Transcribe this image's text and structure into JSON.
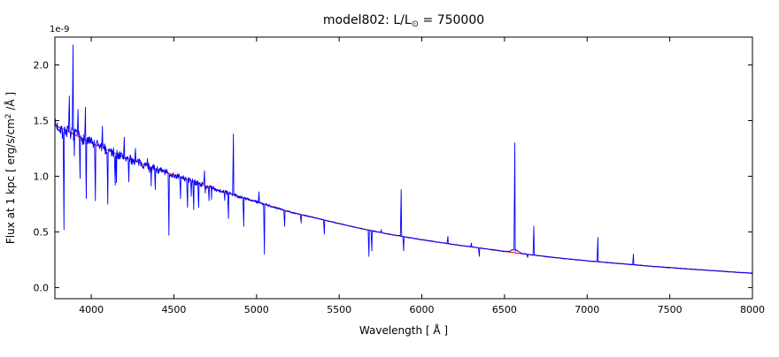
{
  "figure": {
    "title_prefix": "model802: L/L",
    "title_sub": "⊙",
    "title_suffix": " = 750000",
    "xlabel": "Wavelength [ Å ]",
    "ylabel_prefix": "Flux at 1 kpc [ erg/s/cm",
    "ylabel_sup": "2",
    "ylabel_suffix": " /Å ]",
    "offset_text": "1e-9"
  },
  "chart_data": {
    "type": "line",
    "title": "model802: L/L⊙ = 750000",
    "xlabel": "Wavelength [ Å ]",
    "ylabel": "Flux at 1 kpc [ erg/s/cm2 /Å ]",
    "y_unit_scale": "1e-9",
    "xlim": [
      3780,
      8000
    ],
    "ylim": [
      -0.1,
      2.25
    ],
    "x_ticks": [
      4000,
      4500,
      5000,
      5500,
      6000,
      6500,
      7000,
      7500,
      8000
    ],
    "y_ticks": [
      0.0,
      0.5,
      1.0,
      1.5,
      2.0
    ],
    "grid": false,
    "legend": "none",
    "series": [
      {
        "name": "observed spectrum",
        "color": "#0000ff"
      },
      {
        "name": "model continuum",
        "color": "#ff0000"
      }
    ],
    "continuum": {
      "x": [
        3780,
        4000,
        4200,
        4400,
        4600,
        4800,
        5000,
        5200,
        5400,
        5600,
        5800,
        6000,
        6200,
        6400,
        6600,
        6800,
        7000,
        7200,
        7400,
        7600,
        7800,
        8000
      ],
      "y": [
        1.46,
        1.3,
        1.17,
        1.06,
        0.96,
        0.86,
        0.77,
        0.68,
        0.61,
        0.54,
        0.48,
        0.43,
        0.385,
        0.345,
        0.305,
        0.27,
        0.24,
        0.215,
        0.19,
        0.168,
        0.148,
        0.128
      ]
    },
    "spectral_lines": [
      {
        "wavelength": 3835,
        "peak": 0.52
      },
      {
        "wavelength": 3868,
        "peak": 1.72
      },
      {
        "wavelength": 3889,
        "peak": 2.18
      },
      {
        "wavelength": 3920,
        "peak": 1.6
      },
      {
        "wavelength": 3933,
        "peak": 0.98
      },
      {
        "wavelength": 3964,
        "peak": 1.62
      },
      {
        "wavelength": 3970,
        "peak": 0.8
      },
      {
        "wavelength": 4026,
        "peak": 0.78
      },
      {
        "wavelength": 4068,
        "peak": 1.45
      },
      {
        "wavelength": 4101,
        "peak": 0.75
      },
      {
        "wavelength": 4144,
        "peak": 0.92
      },
      {
        "wavelength": 4200,
        "peak": 1.35
      },
      {
        "wavelength": 4227,
        "peak": 0.95
      },
      {
        "wavelength": 4267,
        "peak": 1.25
      },
      {
        "wavelength": 4340,
        "peak": 1.16
      },
      {
        "wavelength": 4388,
        "peak": 0.88
      },
      {
        "wavelength": 4471,
        "peak": 0.47
      },
      {
        "wavelength": 4541,
        "peak": 0.8
      },
      {
        "wavelength": 4583,
        "peak": 0.72
      },
      {
        "wavelength": 4620,
        "peak": 0.7
      },
      {
        "wavelength": 4650,
        "peak": 0.72
      },
      {
        "wavelength": 4686,
        "peak": 1.05
      },
      {
        "wavelength": 4713,
        "peak": 0.78
      },
      {
        "wavelength": 4830,
        "peak": 0.62
      },
      {
        "wavelength": 4861,
        "peak": 1.38
      },
      {
        "wavelength": 4922,
        "peak": 0.55
      },
      {
        "wavelength": 5016,
        "peak": 0.86
      },
      {
        "wavelength": 5048,
        "peak": 0.3
      },
      {
        "wavelength": 5169,
        "peak": 0.55
      },
      {
        "wavelength": 5270,
        "peak": 0.58
      },
      {
        "wavelength": 5411,
        "peak": 0.48
      },
      {
        "wavelength": 5680,
        "peak": 0.28
      },
      {
        "wavelength": 5697,
        "peak": 0.33
      },
      {
        "wavelength": 5755,
        "peak": 0.52
      },
      {
        "wavelength": 5876,
        "peak": 0.88
      },
      {
        "wavelength": 5890,
        "peak": 0.33
      },
      {
        "wavelength": 6157,
        "peak": 0.46
      },
      {
        "wavelength": 6300,
        "peak": 0.4
      },
      {
        "wavelength": 6347,
        "peak": 0.28
      },
      {
        "wavelength": 6563,
        "peak": 1.3
      },
      {
        "wavelength": 6640,
        "peak": 0.27
      },
      {
        "wavelength": 6678,
        "peak": 0.55
      },
      {
        "wavelength": 7065,
        "peak": 0.45
      },
      {
        "wavelength": 7281,
        "peak": 0.3
      }
    ],
    "broad_wings": {
      "center": 6563,
      "sigma": 30,
      "height": 0.03
    },
    "noise": {
      "amplitude": 0.055,
      "fade_end": 5400,
      "dip_prob": 0.05,
      "seed": 7
    }
  }
}
